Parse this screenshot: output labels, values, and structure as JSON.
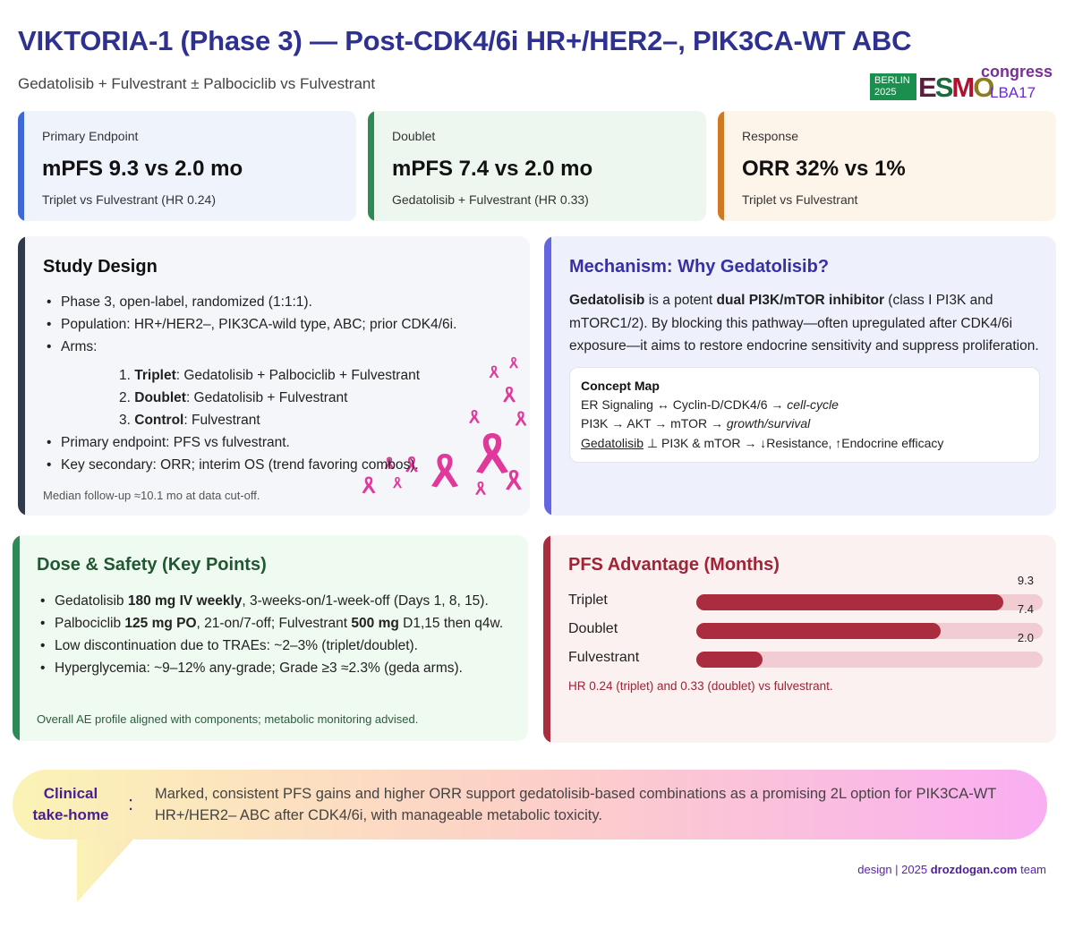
{
  "header": {
    "title": "VIKTORIA-1 (Phase 3) — Post-CDK4/6i HR+/HER2–, PIK3CA-WT ABC",
    "subtitle": "Gedatolisib + Fulvestrant ± Palbociclib vs Fulvestrant"
  },
  "logo": {
    "city": "BERLIN",
    "year": "2025",
    "brand": "ESMO",
    "word": "congress",
    "abstract": "LBA17"
  },
  "stats": [
    {
      "label": "Primary Endpoint",
      "value": "mPFS 9.3 vs 2.0 mo",
      "detail": "Triplet vs Fulvestrant (HR 0.24)",
      "color": "#3d68d6"
    },
    {
      "label": "Doublet",
      "value": "mPFS 7.4 vs 2.0 mo",
      "detail": "Gedatolisib + Fulvestrant (HR 0.33)",
      "color": "#2e8a55"
    },
    {
      "label": "Response",
      "value": "ORR 32% vs 1%",
      "detail": "Triplet vs Fulvestrant",
      "color": "#cd7a22"
    }
  ],
  "design": {
    "title": "Study Design",
    "b1": "Phase 3, open-label, randomized (1:1:1).",
    "b2": "Population: HR+/HER2–, PIK3CA-wild type, ABC; prior CDK4/6i.",
    "b3": "Arms:",
    "arms": [
      {
        "num": "1.",
        "name": "Triplet",
        "desc": ": Gedatolisib + Palbociclib + Fulvestrant"
      },
      {
        "num": "2.",
        "name": "Doublet",
        "desc": ": Gedatolisib + Fulvestrant"
      },
      {
        "num": "3.",
        "name": "Control",
        "desc": ": Fulvestrant"
      }
    ],
    "b4": "Primary endpoint: PFS vs fulvestrant.",
    "b5": "Key secondary: ORR; interim OS (trend favoring combos).",
    "foot": "Median follow-up ≈10.1 mo at data cut-off."
  },
  "mechanism": {
    "title": "Mechanism: Why Gedatolisib?",
    "drug": "Gedatolisib",
    "p1": " is a potent ",
    "bold": "dual PI3K/mTOR inhibitor",
    "p2": " (class I PI3K and mTORC1/2). By blocking this pathway—often upregulated after CDK4/6i exposure—it aims to restore endocrine sensitivity and suppress proliferation.",
    "map_title": "Concept Map",
    "l1a": "ER Signaling ↔ Cyclin-D/CDK4/6 → ",
    "l1b": "cell-cycle",
    "l2a": "PI3K → AKT → mTOR → ",
    "l2b": "growth/survival",
    "l3a": "Gedatolisib",
    "l3b": " ⊥ PI3K & mTOR → ↓Resistance, ↑Endocrine efficacy"
  },
  "safety": {
    "title": "Dose & Safety (Key Points)",
    "s1a": "Gedatolisib ",
    "s1b": "180 mg IV weekly",
    "s1c": ", 3-weeks-on/1-week-off (Days 1, 8, 15).",
    "s2a": "Palbociclib ",
    "s2b": "125 mg PO",
    "s2c": ", 21-on/7-off; Fulvestrant ",
    "s2d": "500 mg",
    "s2e": " D1,15 then q4w.",
    "s3": "Low discontinuation due to TRAEs: ~2–3% (triplet/doublet).",
    "s4": "Hyperglycemia: ~9–12% any-grade; Grade ≥3 ≈2.3% (geda arms).",
    "foot": "Overall AE profile aligned with components; metabolic monitoring advised."
  },
  "pfs": {
    "title": "PFS Advantage (Months)",
    "note": "HR 0.24 (triplet) and 0.33 (doublet) vs fulvestrant."
  },
  "chart_data": {
    "type": "bar",
    "title": "PFS Advantage (Months)",
    "categories": [
      "Triplet",
      "Doublet",
      "Fulvestrant"
    ],
    "values": [
      9.3,
      7.4,
      2.0
    ],
    "labels": [
      "9.3",
      "7.4",
      "2.0"
    ],
    "xlim": [
      0,
      10.5
    ],
    "orientation": "horizontal",
    "grid": false
  },
  "takehome": {
    "line1": "Clinical",
    "line2": "take-home",
    "colon": ":",
    "text": "Marked, consistent PFS gains and higher ORR support gedatolisib-based combinations as a promising 2L option for PIK3CA-WT HR+/HER2– ABC after CDK4/6i, with manageable metabolic toxicity."
  },
  "credit": {
    "pre": "design | 2025 ",
    "site": "drozdogan.com",
    "post": " team"
  },
  "colors": {
    "title": "#2e3192",
    "ribbon": "#e0399b",
    "pfs_bar": "#a92c3f",
    "pfs_track": "#f1cdd3"
  }
}
